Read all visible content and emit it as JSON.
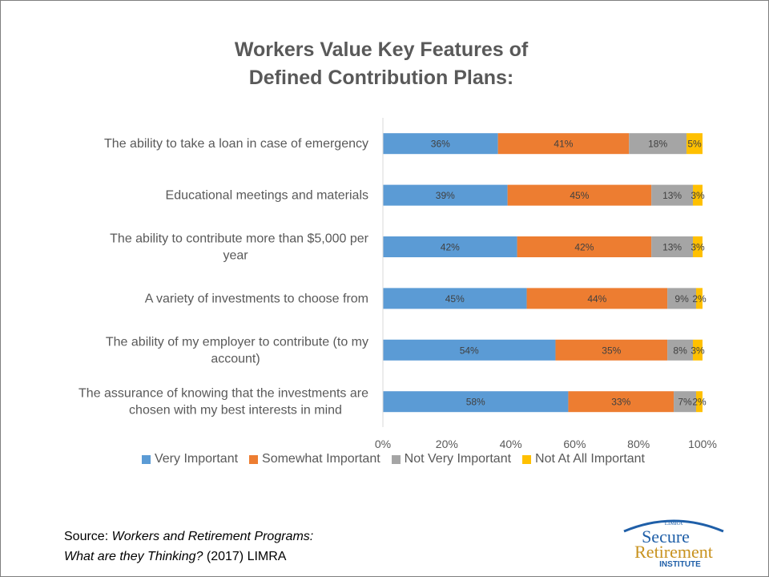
{
  "chart_data": {
    "type": "bar",
    "orientation": "horizontal",
    "stacked": true,
    "title_lines": [
      "Workers Value Key Features of",
      "Defined Contribution Plans:"
    ],
    "categories": [
      [
        "The ability to take a loan in case of emergency"
      ],
      [
        "Educational meetings and materials"
      ],
      [
        "The ability to contribute more than $5,000 per",
        "year"
      ],
      [
        "A variety of investments to choose from"
      ],
      [
        "The ability of my employer to contribute (to my",
        "account)"
      ],
      [
        "The assurance of knowing that the investments are",
        "chosen with my best interests in mind"
      ]
    ],
    "series": [
      {
        "name": "Very Important",
        "color": "#5b9bd5",
        "values": [
          36,
          39,
          42,
          45,
          54,
          58
        ]
      },
      {
        "name": "Somewhat Important",
        "color": "#ed7d31",
        "values": [
          41,
          45,
          42,
          44,
          35,
          33
        ]
      },
      {
        "name": "Not Very Important",
        "color": "#a5a5a5",
        "values": [
          18,
          13,
          13,
          9,
          8,
          7
        ]
      },
      {
        "name": "Not At All Important",
        "color": "#ffc000",
        "values": [
          5,
          3,
          3,
          2,
          3,
          2
        ]
      }
    ],
    "data_labels": [
      [
        "36%",
        "39%",
        "42%",
        "45%",
        "54%",
        "58%"
      ],
      [
        "41%",
        "45%",
        "42%",
        "44%",
        "35%",
        "33%"
      ],
      [
        "18%",
        "13%",
        "13%",
        "9%",
        "8%",
        "7%"
      ],
      [
        "5%",
        "3%",
        "3%",
        "2%",
        "3%",
        "2%"
      ]
    ],
    "x_ticks": [
      "0%",
      "20%",
      "40%",
      "60%",
      "80%",
      "100%"
    ],
    "xlim": [
      0,
      100
    ],
    "grid": false,
    "legend_position": "bottom"
  },
  "source": {
    "prefix": "Source: ",
    "italic_line1": "Workers and Retirement Programs:",
    "italic_line2": "What are they Thinking?",
    "suffix": " (2017) LIMRA"
  },
  "logo": {
    "top_text": "LIMRA",
    "line1": "Secure",
    "line2": "Retirement",
    "line3": "INSTITUTE",
    "blue": "#1f5fa8",
    "gold": "#c8921e"
  }
}
